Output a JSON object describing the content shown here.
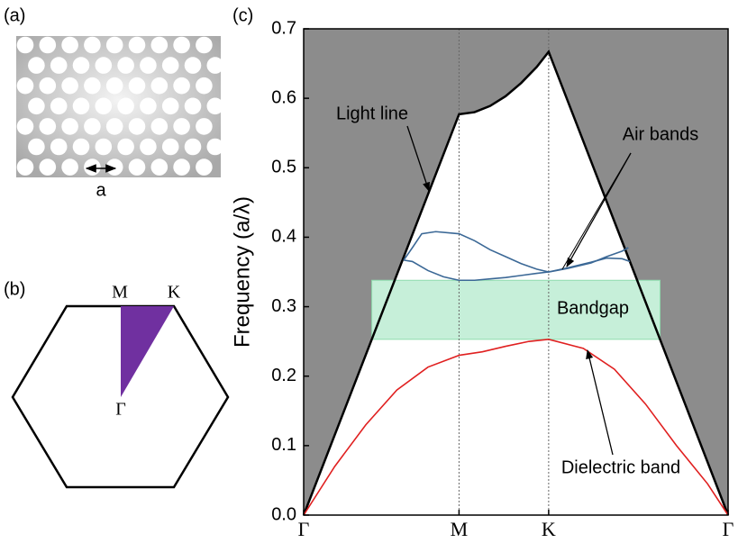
{
  "figure": {
    "panel_a": {
      "label": "(a)",
      "dimension": "a"
    },
    "panel_b": {
      "label": "(b)",
      "points": [
        "M",
        "K",
        "Γ"
      ]
    },
    "panel_c": {
      "label": "(c)"
    }
  },
  "chart_data": {
    "type": "line",
    "ylabel": "Frequency (a/λ)",
    "xlim": [
      0,
      2.732
    ],
    "ylim": [
      0,
      0.7
    ],
    "xticks": [
      {
        "value": 0,
        "label": "Γ"
      },
      {
        "value": 1,
        "label": "M"
      },
      {
        "value": 1.577,
        "label": "K"
      },
      {
        "value": 2.732,
        "label": "Γ"
      }
    ],
    "yticks": [
      {
        "value": 0,
        "label": "0.0"
      },
      0.1,
      0.2,
      0.3,
      0.4,
      0.5,
      0.6,
      0.7
    ],
    "light_cone_color": "#8c8c8c",
    "bandgap": {
      "label": "Bandgap",
      "range": [
        0.253,
        0.338
      ],
      "color": "#c6efd9"
    },
    "series": [
      {
        "name": "Light line",
        "color": "#000000",
        "x": [
          0,
          1,
          1.1,
          1.2,
          1.3,
          1.4,
          1.5,
          1.577,
          2.732
        ],
        "values": [
          0,
          0.577,
          0.58,
          0.589,
          0.603,
          0.622,
          0.645,
          0.667,
          0
        ]
      },
      {
        "name": "Air bands",
        "color": "#3b6896",
        "x": [
          0.644,
          0.7,
          0.76,
          0.85,
          0.95,
          1.0,
          1.1,
          1.2,
          1.3,
          1.4,
          1.5,
          1.577,
          1.7,
          1.85,
          1.95,
          2.05,
          2.09
        ],
        "values": [
          0.367,
          0.385,
          0.405,
          0.408,
          0.406,
          0.405,
          0.395,
          0.382,
          0.372,
          0.362,
          0.354,
          0.35,
          0.355,
          0.363,
          0.372,
          0.38,
          0.385
        ]
      },
      {
        "color": "#3b6896",
        "x": [
          0.644,
          0.7,
          0.8,
          0.9,
          1.0,
          1.1,
          1.2,
          1.3,
          1.4,
          1.5,
          1.577,
          1.7,
          1.85,
          1.95,
          2.05,
          2.1
        ],
        "values": [
          0.367,
          0.365,
          0.352,
          0.343,
          0.338,
          0.338,
          0.34,
          0.342,
          0.345,
          0.348,
          0.35,
          0.356,
          0.364,
          0.37,
          0.369,
          0.365
        ]
      },
      {
        "name": "Dielectric band",
        "color": "#e02020",
        "x": [
          0,
          0.2,
          0.4,
          0.6,
          0.8,
          1.0,
          1.15,
          1.3,
          1.45,
          1.577,
          1.8,
          2.0,
          2.2,
          2.4,
          2.6,
          2.732
        ],
        "values": [
          0,
          0.07,
          0.13,
          0.18,
          0.213,
          0.23,
          0.235,
          0.243,
          0.25,
          0.253,
          0.24,
          0.21,
          0.16,
          0.1,
          0.045,
          0
        ]
      }
    ]
  }
}
